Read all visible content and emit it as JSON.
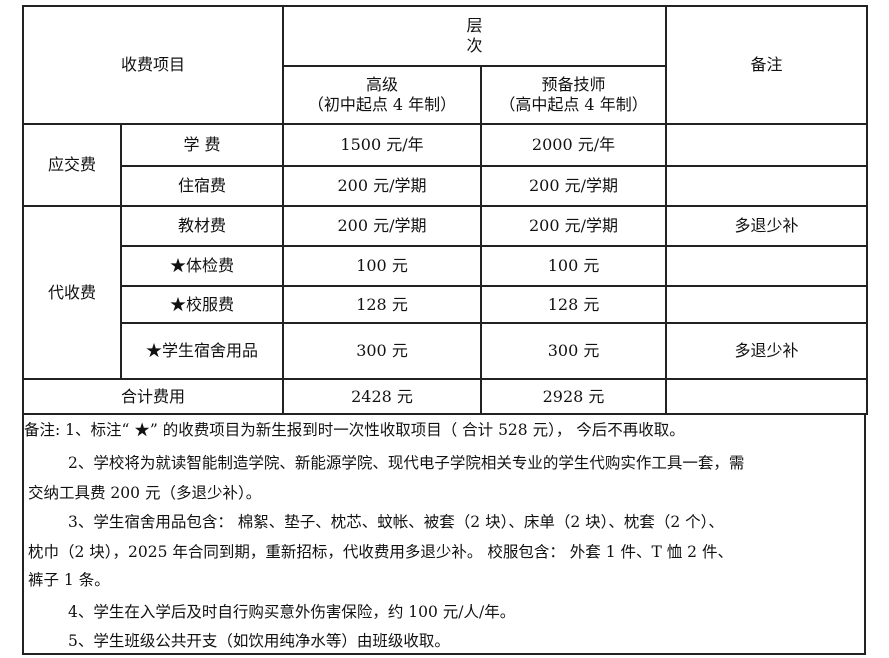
{
  "header": {
    "item": "收费项目",
    "level_line1": "层",
    "level_line2": "次",
    "remarks": "备注",
    "col1_title": "高级",
    "col1_sub": "（初中起点 4 年制）",
    "col2_title": "预备技师",
    "col2_sub": "（高中起点 4 年制）"
  },
  "groups": {
    "required": "应交费",
    "collected": "代收费"
  },
  "rows": [
    {
      "item": "学  费",
      "senior": "1500 元/年",
      "technician": "2000 元/年",
      "remark": ""
    },
    {
      "item": "住宿费",
      "senior": "200 元/学期",
      "technician": "200 元/学期",
      "remark": ""
    },
    {
      "item": "教材费",
      "senior": "200 元/学期",
      "technician": "200 元/学期",
      "remark": "多退少补"
    },
    {
      "item": "★体检费",
      "senior": "100 元",
      "technician": "100 元",
      "remark": ""
    },
    {
      "item": "★校服费",
      "senior": "128 元",
      "technician": "128 元",
      "remark": ""
    },
    {
      "item": "★学生宿舍用品",
      "senior": "300 元",
      "technician": "300 元",
      "remark": "多退少补"
    }
  ],
  "total": {
    "label": "合计费用",
    "senior": "2428 元",
    "technician": "2928 元",
    "remark": ""
  },
  "notes": [
    "备注: 1、标注“ ★” 的收费项目为新生报到时一次性收取项目（ 合计 528 元）， 今后不再收取。",
    "2、学校将为就读智能制造学院、新能源学院、现代电子学院相关专业的学生代购实作工具一套，需",
    "交纳工具费 200 元（多退少补）。",
    "3、学生宿舍用品包含： 棉絮、垫子、枕芯、蚊帐、被套（2 块）、床单（2 块）、枕套（2 个）、",
    "枕巾（2 块），2025 年合同到期，重新招标，代收费用多退少补。 校服包含： 外套 1 件、T 恤 2 件、",
    "裤子 1 条。",
    "4、学生在入学后及时自行购买意外伤害保险，约 100 元/人/年。",
    "5、学生班级公共开支（如饮用纯净水等）由班级收取。"
  ]
}
